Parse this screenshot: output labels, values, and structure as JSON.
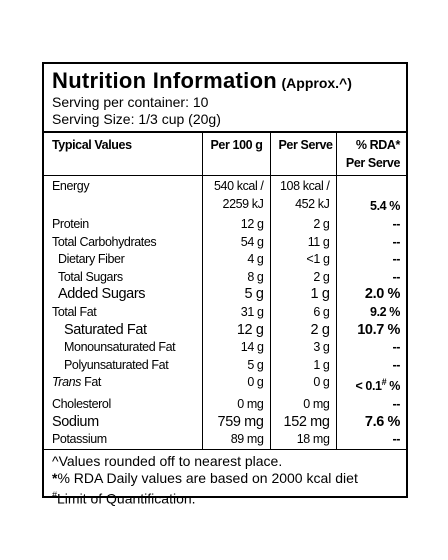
{
  "header": {
    "title": "Nutrition Information",
    "approx": "(Approx.^)",
    "servings_per_container": "Serving per container: 10",
    "serving_size": "Serving Size: 1/3 cup (20g)"
  },
  "table": {
    "columns": [
      "Typical Values",
      "Per 100 g",
      "Per Serve",
      [
        "% RDA*",
        "Per Serve"
      ]
    ],
    "rows": [
      [
        "Energy",
        [
          "540 kcal /",
          "2259 kJ"
        ],
        [
          "108 kcal /",
          "452 kJ"
        ],
        "5.4 %"
      ],
      [
        "Protein",
        "12 g",
        "2 g",
        "--"
      ],
      [
        "Total Carbohydrates",
        "54 g",
        "11 g",
        "--"
      ],
      [
        "Dietary Fiber",
        "4 g",
        "<1 g",
        "--"
      ],
      [
        "Total Sugars",
        "8 g",
        "2 g",
        "--"
      ],
      [
        "Added Sugars",
        "5 g",
        "1 g",
        "2.0 %"
      ],
      [
        "Total Fat",
        "31 g",
        "6 g",
        "9.2 %"
      ],
      [
        "Saturated Fat",
        "12 g",
        "2 g",
        "10.7 %"
      ],
      [
        "Monounsaturated Fat",
        "14 g",
        "3 g",
        "--"
      ],
      [
        "Polyunsaturated Fat",
        "5 g",
        "1 g",
        "--"
      ],
      [
        [
          "Trans",
          " Fat"
        ],
        "0 g",
        "0 g",
        [
          "< 0.1",
          "#",
          " %"
        ]
      ],
      [
        "Cholesterol",
        "0 mg",
        "0 mg",
        "--"
      ],
      [
        "Sodium",
        "759 mg",
        "152 mg",
        "7.6 %"
      ],
      [
        "Potassium",
        "89 mg",
        "18 mg",
        "--"
      ]
    ]
  },
  "footnotes": [
    [
      "^",
      "Values rounded off to nearest place."
    ],
    [
      "*",
      "% RDA Daily values are based on 2000 kcal diet"
    ],
    [
      "#",
      "Limit of Quantification."
    ]
  ]
}
